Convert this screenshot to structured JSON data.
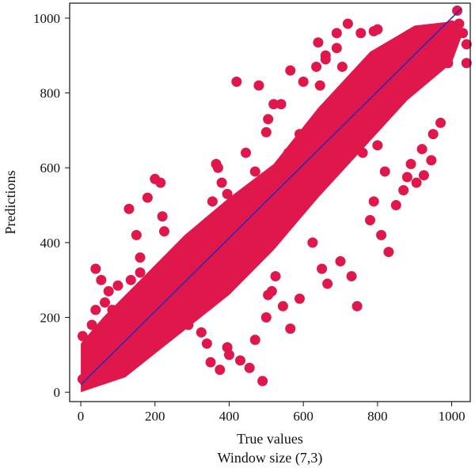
{
  "chart_data": {
    "type": "scatter",
    "title": "",
    "subtitle": "Window size (7,3)",
    "xlabel": "True values",
    "ylabel": "Predictions",
    "xlim": [
      -30,
      1050
    ],
    "ylim": [
      -25,
      1040
    ],
    "xticks": [
      0,
      200,
      400,
      600,
      800,
      1000
    ],
    "yticks": [
      0,
      200,
      400,
      600,
      800,
      1000
    ],
    "grid": false,
    "legend": "none",
    "point_color": "#e0174a",
    "line_color": "#2b2bb5",
    "reference_line": {
      "x": [
        0,
        1025
      ],
      "y": [
        20,
        1025
      ]
    },
    "series": [
      {
        "x": [
          5,
          15,
          25,
          35,
          45,
          55,
          60,
          70,
          80,
          95,
          110,
          130,
          150,
          165,
          180,
          200,
          215,
          230,
          250,
          270,
          290,
          310,
          330,
          350,
          370,
          390,
          410,
          430,
          450,
          470,
          490,
          510,
          530,
          555,
          580,
          600,
          620,
          640,
          660,
          680,
          700,
          720,
          740,
          760,
          780,
          800,
          820,
          840,
          860,
          880,
          900,
          920,
          940,
          960,
          980,
          1000,
          1010,
          5,
          30,
          40,
          65,
          100,
          135,
          160,
          240,
          255,
          285,
          300,
          320,
          355,
          365,
          380,
          395,
          415,
          440,
          445,
          470,
          500,
          505,
          520,
          540,
          560,
          575,
          590,
          635,
          645,
          660,
          690,
          705,
          720,
          735,
          760,
          770,
          800,
          820,
          880,
          905,
          925,
          945,
          960,
          990,
          1000,
          1030,
          1040,
          1020,
          40,
          55,
          75,
          85,
          130,
          150,
          160,
          180,
          200,
          215,
          220,
          225,
          245,
          265,
          290,
          305,
          325,
          340,
          350,
          375,
          395,
          400,
          430,
          455,
          470,
          490,
          500,
          505,
          515,
          525,
          545,
          565,
          590,
          625,
          650,
          665,
          700,
          730,
          745,
          780,
          790,
          810,
          830,
          850,
          870,
          890,
          920,
          950,
          970,
          370,
          420,
          480,
          565,
          600,
          640,
          660,
          690,
          720,
          755,
          790,
          800,
          1015,
          1040
        ],
        "y": [
          35,
          55,
          60,
          80,
          90,
          110,
          120,
          145,
          150,
          160,
          170,
          190,
          210,
          190,
          180,
          220,
          240,
          260,
          290,
          320,
          330,
          350,
          390,
          410,
          420,
          430,
          470,
          480,
          485,
          520,
          540,
          555,
          580,
          570,
          610,
          630,
          660,
          680,
          720,
          740,
          760,
          775,
          780,
          800,
          810,
          830,
          855,
          880,
          890,
          900,
          930,
          950,
          955,
          965,
          970,
          980,
          965,
          150,
          180,
          220,
          240,
          285,
          300,
          320,
          320,
          350,
          360,
          380,
          395,
          510,
          610,
          560,
          530,
          455,
          500,
          640,
          590,
          695,
          730,
          770,
          770,
          640,
          580,
          690,
          870,
          820,
          900,
          920,
          870,
          790,
          710,
          640,
          700,
          660,
          590,
          575,
          560,
          580,
          620,
          900,
          880,
          940,
          960,
          930,
          985,
          330,
          300,
          270,
          220,
          490,
          420,
          360,
          520,
          570,
          560,
          470,
          430,
          350,
          240,
          180,
          220,
          160,
          130,
          80,
          60,
          120,
          100,
          85,
          65,
          140,
          30,
          200,
          260,
          270,
          310,
          230,
          170,
          250,
          400,
          330,
          290,
          350,
          310,
          230,
          460,
          510,
          420,
          375,
          500,
          540,
          610,
          650,
          690,
          720,
          600,
          830,
          820,
          860,
          830,
          935,
          890,
          960,
          985,
          960,
          965,
          970,
          1020,
          880
        ]
      }
    ]
  }
}
